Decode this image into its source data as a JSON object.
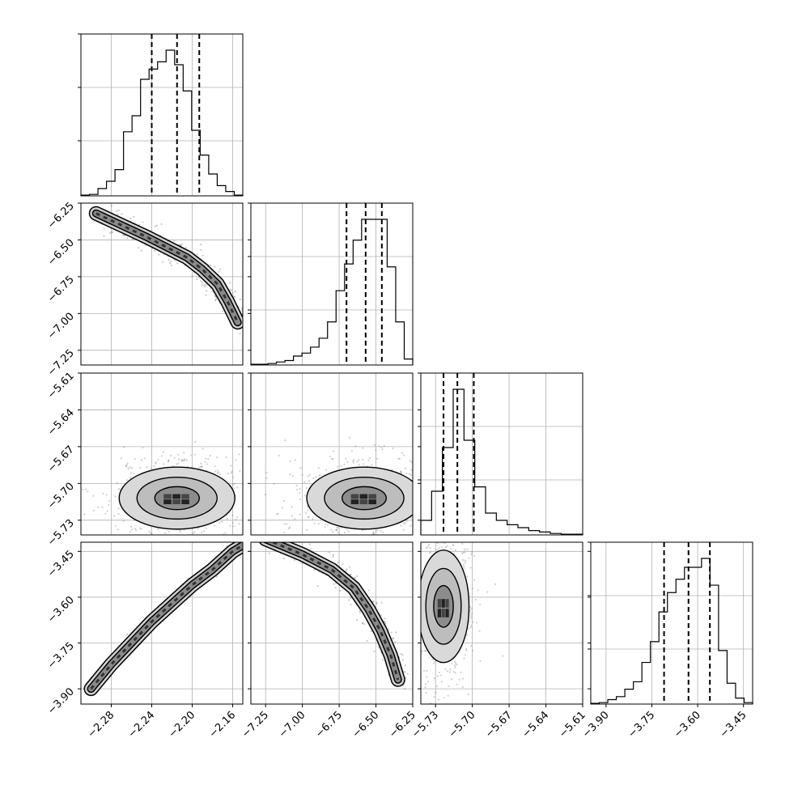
{
  "chart_data": {
    "type": "corner",
    "grid": true,
    "parameters": [
      {
        "range": [
          -2.31,
          -2.15
        ],
        "ticks": [
          -2.28,
          -2.24,
          -2.2,
          -2.16
        ],
        "tick_labels": [
          "−2.28",
          "−2.24",
          "−2.20",
          "−2.16"
        ],
        "quantiles": [
          -2.24,
          -2.215,
          -2.193
        ],
        "hist_counts": [
          0.5,
          1,
          5,
          10,
          18,
          44,
          55,
          80,
          87,
          92,
          100,
          90,
          72,
          45,
          28,
          15,
          7,
          3,
          0.5
        ]
      },
      {
        "range": [
          -7.35,
          -6.25
        ],
        "ticks": [
          -7.25,
          -7.0,
          -6.75,
          -6.5,
          -6.25
        ],
        "tick_labels": [
          "−7.25",
          "−7.00",
          "−6.75",
          "−6.50",
          "−6.25"
        ],
        "quantiles": [
          -6.7,
          -6.57,
          -6.46
        ],
        "hist_counts": [
          0.5,
          0.5,
          1,
          2,
          3,
          6,
          8,
          12,
          18,
          29,
          50,
          68,
          84,
          98,
          98,
          98,
          66,
          29,
          4
        ]
      },
      {
        "range": [
          -5.742,
          -5.61
        ],
        "ticks": [
          -5.73,
          -5.7,
          -5.67,
          -5.64,
          -5.61
        ],
        "tick_labels": [
          "−5.73",
          "−5.70",
          "−5.67",
          "−5.64",
          "−5.61"
        ],
        "quantiles": [
          -5.7235,
          -5.7122,
          -5.6988
        ],
        "hist_counts": [
          10,
          30,
          60,
          100,
          65,
          33,
          15,
          10,
          7,
          5,
          3,
          2,
          1,
          0.5,
          0.5
        ]
      },
      {
        "range": [
          -3.95,
          -3.42
        ],
        "ticks": [
          -3.9,
          -3.75,
          -3.6,
          -3.45
        ],
        "tick_labels": [
          "−3.90",
          "−3.75",
          "−3.60",
          "−3.45"
        ],
        "quantiles": [
          -3.71,
          -3.63,
          -3.56
        ],
        "hist_counts": [
          0.5,
          1,
          3,
          5,
          10,
          15,
          28,
          42,
          62,
          75,
          84,
          92,
          92,
          98,
          80,
          36,
          14,
          4,
          1
        ]
      }
    ],
    "pairs": [
      {
        "row": 1,
        "col": 0,
        "kind": "curved",
        "points": [
          [
            -2.295,
            -6.32
          ],
          [
            -2.27,
            -6.4
          ],
          [
            -2.245,
            -6.48
          ],
          [
            -2.225,
            -6.55
          ],
          [
            -2.205,
            -6.62
          ],
          [
            -2.19,
            -6.7
          ],
          [
            -2.175,
            -6.8
          ],
          [
            -2.165,
            -6.92
          ],
          [
            -2.155,
            -7.06
          ]
        ]
      },
      {
        "row": 2,
        "col": 0,
        "kind": "blob",
        "center": [
          -2.215,
          -5.712
        ],
        "spread": [
          0.022,
          0.011
        ]
      },
      {
        "row": 2,
        "col": 1,
        "kind": "blob",
        "center": [
          -6.58,
          -5.712
        ],
        "spread": [
          0.15,
          0.011
        ]
      },
      {
        "row": 3,
        "col": 0,
        "kind": "line",
        "points": [
          [
            -2.3,
            -3.9
          ],
          [
            -2.28,
            -3.82
          ],
          [
            -2.26,
            -3.75
          ],
          [
            -2.24,
            -3.68
          ],
          [
            -2.22,
            -3.62
          ],
          [
            -2.2,
            -3.56
          ],
          [
            -2.18,
            -3.51
          ],
          [
            -2.16,
            -3.45
          ],
          [
            -2.15,
            -3.43
          ]
        ]
      },
      {
        "row": 3,
        "col": 1,
        "kind": "curved",
        "points": [
          [
            -7.25,
            -3.41
          ],
          [
            -7.0,
            -3.46
          ],
          [
            -6.8,
            -3.51
          ],
          [
            -6.65,
            -3.57
          ],
          [
            -6.55,
            -3.64
          ],
          [
            -6.47,
            -3.71
          ],
          [
            -6.4,
            -3.79
          ],
          [
            -6.35,
            -3.87
          ]
        ]
      },
      {
        "row": 3,
        "col": 2,
        "kind": "blob",
        "center": [
          -5.7235,
          -3.63
        ],
        "spread": [
          0.008,
          0.08
        ]
      }
    ]
  }
}
